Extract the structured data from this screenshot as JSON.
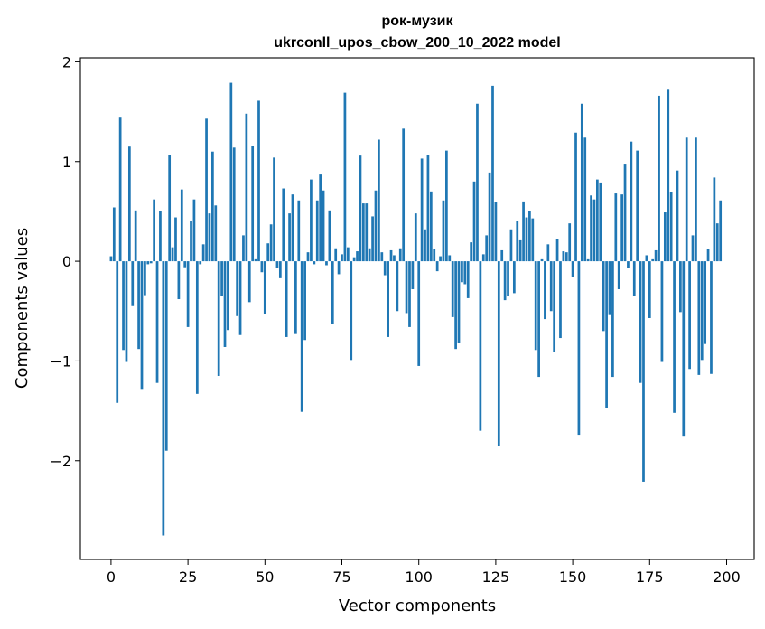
{
  "chart_data": {
    "type": "bar",
    "title_line1": "рок-музик",
    "title_line2": "ukrconll_upos_cbow_200_10_2022 model",
    "xlabel": "Vector components",
    "ylabel": "Components values",
    "xlim": [
      -9.95,
      208.95
    ],
    "ylim": [
      -2.99,
      2.04
    ],
    "xticks": [
      0,
      25,
      50,
      75,
      100,
      125,
      150,
      175,
      200
    ],
    "xtick_labels": [
      "0",
      "25",
      "50",
      "75",
      "100",
      "125",
      "150",
      "175",
      "200"
    ],
    "yticks": [
      -2,
      -1,
      0,
      1,
      2
    ],
    "ytick_labels": [
      "−2",
      "−1",
      "0",
      "1",
      "2"
    ],
    "grid": false,
    "bar_color": "#1f77b4",
    "bar_width": 0.8,
    "values": [
      0.05,
      0.54,
      -1.42,
      1.44,
      -0.89,
      -1.01,
      1.15,
      -0.45,
      0.51,
      -0.88,
      -1.28,
      -0.34,
      -0.03,
      -0.02,
      0.62,
      -1.22,
      0.5,
      -2.75,
      -1.9,
      1.07,
      0.14,
      0.44,
      -0.38,
      0.72,
      -0.06,
      -0.66,
      0.4,
      0.62,
      -1.33,
      -0.03,
      0.17,
      1.43,
      0.48,
      1.1,
      0.56,
      -1.15,
      -0.35,
      -0.86,
      -0.69,
      1.79,
      1.14,
      -0.55,
      -0.74,
      0.26,
      1.48,
      -0.41,
      1.16,
      0.02,
      1.61,
      -0.11,
      -0.53,
      0.18,
      0.37,
      1.04,
      -0.07,
      -0.17,
      0.73,
      -0.76,
      0.48,
      0.67,
      -0.73,
      0.61,
      -1.51,
      -0.79,
      0.09,
      0.82,
      -0.03,
      0.61,
      0.87,
      0.71,
      -0.04,
      0.51,
      -0.63,
      0.13,
      -0.13,
      0.07,
      1.69,
      0.14,
      -0.99,
      0.04,
      0.1,
      1.06,
      0.58,
      0.58,
      0.13,
      0.45,
      0.71,
      1.22,
      0.09,
      -0.14,
      -0.76,
      0.11,
      0.06,
      -0.5,
      0.13,
      1.33,
      -0.52,
      -0.66,
      -0.28,
      0.48,
      -1.05,
      1.03,
      0.32,
      1.07,
      0.7,
      0.12,
      -0.1,
      0.05,
      0.61,
      1.11,
      0.06,
      -0.56,
      -0.88,
      -0.82,
      -0.21,
      -0.23,
      -0.37,
      0.19,
      0.8,
      1.58,
      -1.7,
      0.07,
      0.26,
      0.89,
      1.76,
      0.59,
      -1.85,
      0.11,
      -0.39,
      -0.35,
      0.32,
      -0.32,
      0.4,
      0.21,
      0.6,
      0.44,
      0.5,
      0.43,
      -0.89,
      -1.16,
      0.02,
      -0.58,
      0.17,
      -0.5,
      -0.91,
      0.22,
      -0.77,
      0.1,
      0.09,
      0.38,
      -0.16,
      1.29,
      -1.74,
      1.58,
      1.24,
      0.02,
      0.66,
      0.62,
      0.82,
      0.79,
      -0.7,
      -1.47,
      -0.54,
      -1.16,
      0.68,
      -0.28,
      0.67,
      0.97,
      -0.07,
      1.2,
      -0.35,
      1.11,
      -1.22,
      -2.21,
      0.06,
      -0.57,
      0.02,
      0.11,
      1.66,
      -1.01,
      0.49,
      1.72,
      0.69,
      -1.52,
      0.91,
      -0.51,
      -1.75,
      1.24,
      -1.08,
      0.26,
      1.24,
      -1.14,
      -0.99,
      -0.83,
      0.12,
      -1.13,
      0.84,
      0.38,
      0.61
    ]
  }
}
